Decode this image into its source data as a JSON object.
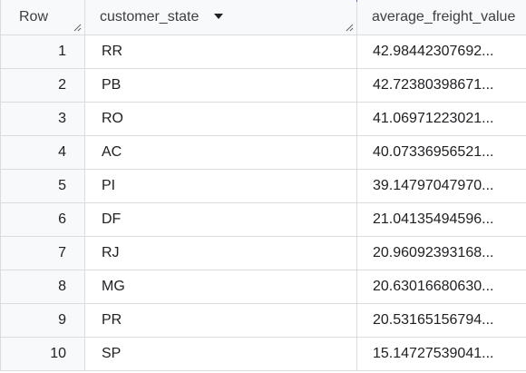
{
  "table": {
    "headers": {
      "row": "Row",
      "state": "customer_state",
      "freight": "average_freight_value"
    },
    "sort_icon": "sort-descending-arrow-icon",
    "rows": [
      {
        "row": "1",
        "state": "RR",
        "freight": "42.98442307692..."
      },
      {
        "row": "2",
        "state": "PB",
        "freight": "42.72380398671..."
      },
      {
        "row": "3",
        "state": "RO",
        "freight": "41.06971223021..."
      },
      {
        "row": "4",
        "state": "AC",
        "freight": "40.07336956521..."
      },
      {
        "row": "5",
        "state": "PI",
        "freight": "39.14797047970..."
      },
      {
        "row": "6",
        "state": "DF",
        "freight": "21.04135494596..."
      },
      {
        "row": "7",
        "state": "RJ",
        "freight": "20.96092393168..."
      },
      {
        "row": "8",
        "state": "MG",
        "freight": "20.63016680630..."
      },
      {
        "row": "9",
        "state": "PR",
        "freight": "20.53165156794..."
      },
      {
        "row": "10",
        "state": "SP",
        "freight": "15.14727539041..."
      }
    ]
  },
  "colors": {
    "header_bg": "#f8f9fa",
    "border": "#dadce0",
    "accent": "#4a6fd8"
  }
}
